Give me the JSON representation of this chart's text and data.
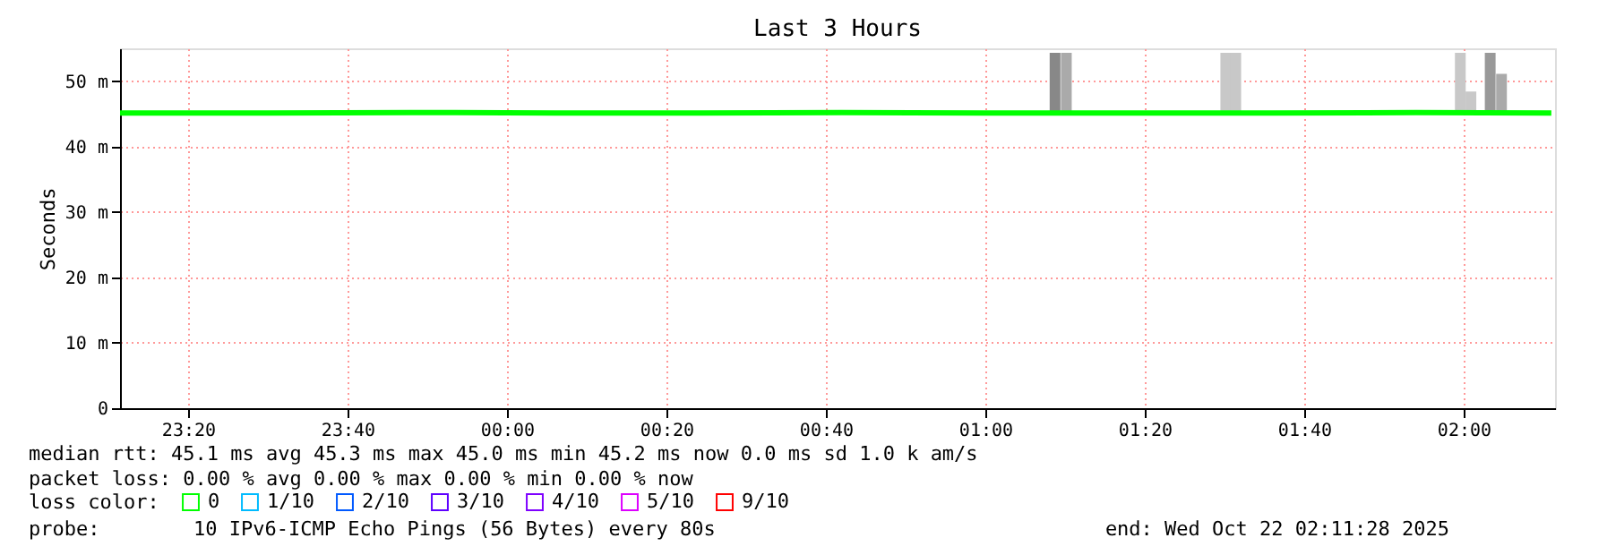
{
  "chart_data": {
    "type": "line",
    "title": "Last 3 Hours",
    "ylabel": "Seconds",
    "legend_title": "loss color:",
    "legend": "bottom",
    "grid": true,
    "marker": "none",
    "line_style": "solid",
    "xlim": [
      "2025-10-21T23:11:28",
      "2025-10-22T02:11:28"
    ],
    "ylim": [
      0,
      55
    ],
    "xticks": [
      {
        "value": "2025-10-21T23:20",
        "label": "23:20"
      },
      {
        "value": "2025-10-21T23:40",
        "label": "23:40"
      },
      {
        "value": "2025-10-22T00:00",
        "label": "00:00"
      },
      {
        "value": "2025-10-22T00:20",
        "label": "00:20"
      },
      {
        "value": "2025-10-22T00:40",
        "label": "00:40"
      },
      {
        "value": "2025-10-22T01:00",
        "label": "01:00"
      },
      {
        "value": "2025-10-22T01:20",
        "label": "01:20"
      },
      {
        "value": "2025-10-22T01:40",
        "label": "01:40"
      },
      {
        "value": "2025-10-22T02:00",
        "label": "02:00"
      }
    ],
    "yticks": [
      0,
      {
        "value": 10,
        "label": "10 m"
      },
      {
        "value": 20,
        "label": "20 m"
      },
      {
        "value": 30,
        "label": "30 m"
      },
      {
        "value": 40,
        "label": "40 m"
      },
      {
        "value": 50,
        "label": "50 m"
      }
    ],
    "series": [
      {
        "type": "bar",
        "color": "#aaaaaa",
        "x": [
          "2025-10-22T01:08:45",
          "2025-10-22T01:10:10",
          "2025-10-22T01:30:10",
          "2025-10-22T01:31:25",
          "2025-10-22T01:59:35",
          "2025-10-22T02:00:55",
          "2025-10-22T02:03:20",
          "2025-10-22T02:04:45"
        ],
        "base": [
          45,
          45,
          45,
          45,
          45,
          45,
          45,
          45
        ],
        "values": [
          9.3,
          9.3,
          9.3,
          9.3,
          9.3,
          3.4,
          9.3,
          6.1
        ],
        "colors": [
          "#888888",
          "#aaaaaa",
          "#c8c8c8",
          "#c8c8c8",
          "#c8c8c8",
          "#c8c8c8",
          "#999999",
          "#aaaaaa"
        ]
      },
      {
        "name": "0",
        "color": "#00ff00",
        "x": [
          "2025-10-21T23:11:28",
          "2025-10-21T23:30",
          "2025-10-21T23:48",
          "2025-10-22T00:06",
          "2025-10-22T00:24",
          "2025-10-22T00:42",
          "2025-10-22T01:00",
          "2025-10-22T01:18",
          "2025-10-22T01:36",
          "2025-10-22T01:54",
          "2025-10-22T02:11"
        ],
        "values": [
          45.1,
          45.1,
          45.2,
          45.1,
          45.1,
          45.2,
          45.1,
          45.1,
          45.1,
          45.2,
          45.1
        ]
      },
      {
        "name": "1/10",
        "color": "#00bbff"
      },
      {
        "name": "2/10",
        "color": "#0059ff"
      },
      {
        "name": "3/10",
        "color": "#5e00ff"
      },
      {
        "name": "4/10",
        "color": "#7e00ff"
      },
      {
        "name": "5/10",
        "color": "#dd00ff"
      },
      {
        "name": "9/10",
        "color": "#ff0000"
      }
    ],
    "annotations": [
      "median rtt:  45.1 ms avg  45.3 ms max  45.0 ms min  45.2 ms now  0.0 ms sd  1.0 k am/s",
      "packet loss: 0.00 % avg  0.00 % max  0.00 % min  0.00 % now",
      "probe:",
      "10 IPv6-ICMP Echo Pings (56 Bytes) every 80s",
      "end: Wed Oct 22 02:11:28 2025"
    ]
  }
}
